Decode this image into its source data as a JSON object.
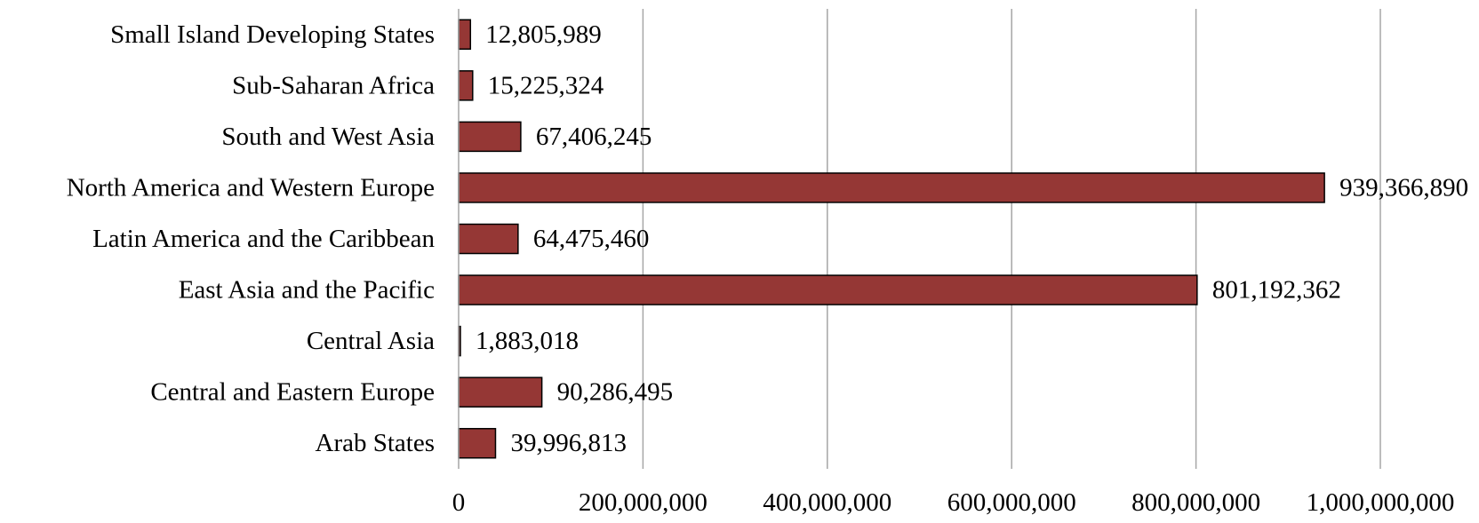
{
  "chart_data": {
    "type": "bar",
    "orientation": "horizontal",
    "title": "",
    "xlabel": "",
    "ylabel": "",
    "categories": [
      "Small Island Developing States",
      "Sub-Saharan Africa",
      "South and West Asia",
      "North America and Western Europe",
      "Latin America and the Caribbean",
      "East Asia and the Pacific",
      "Central Asia",
      "Central and Eastern Europe",
      "Arab States"
    ],
    "values": [
      12805989,
      15225324,
      67406245,
      939366890,
      64475460,
      801192362,
      1883018,
      90286495,
      39996813
    ],
    "value_labels": [
      "12,805,989",
      "15,225,324",
      "67,406,245",
      "939,366,890",
      "64,475,460",
      "801,192,362",
      "1,883,018",
      "90,286,495",
      "39,996,813"
    ],
    "xlim": [
      0,
      1000000000
    ],
    "x_ticks": [
      0,
      200000000,
      400000000,
      600000000,
      800000000,
      1000000000
    ],
    "x_tick_labels": [
      "0",
      "200,000,000",
      "400,000,000",
      "600,000,000",
      "800,000,000",
      "1,000,000,000"
    ],
    "grid": "vertical",
    "legend": "none",
    "colors": {
      "bar_fill": "#953735",
      "bar_stroke": "#000000",
      "gridline": "#a6a6a6",
      "axis": "#a6a6a6",
      "text": "#000000"
    }
  }
}
